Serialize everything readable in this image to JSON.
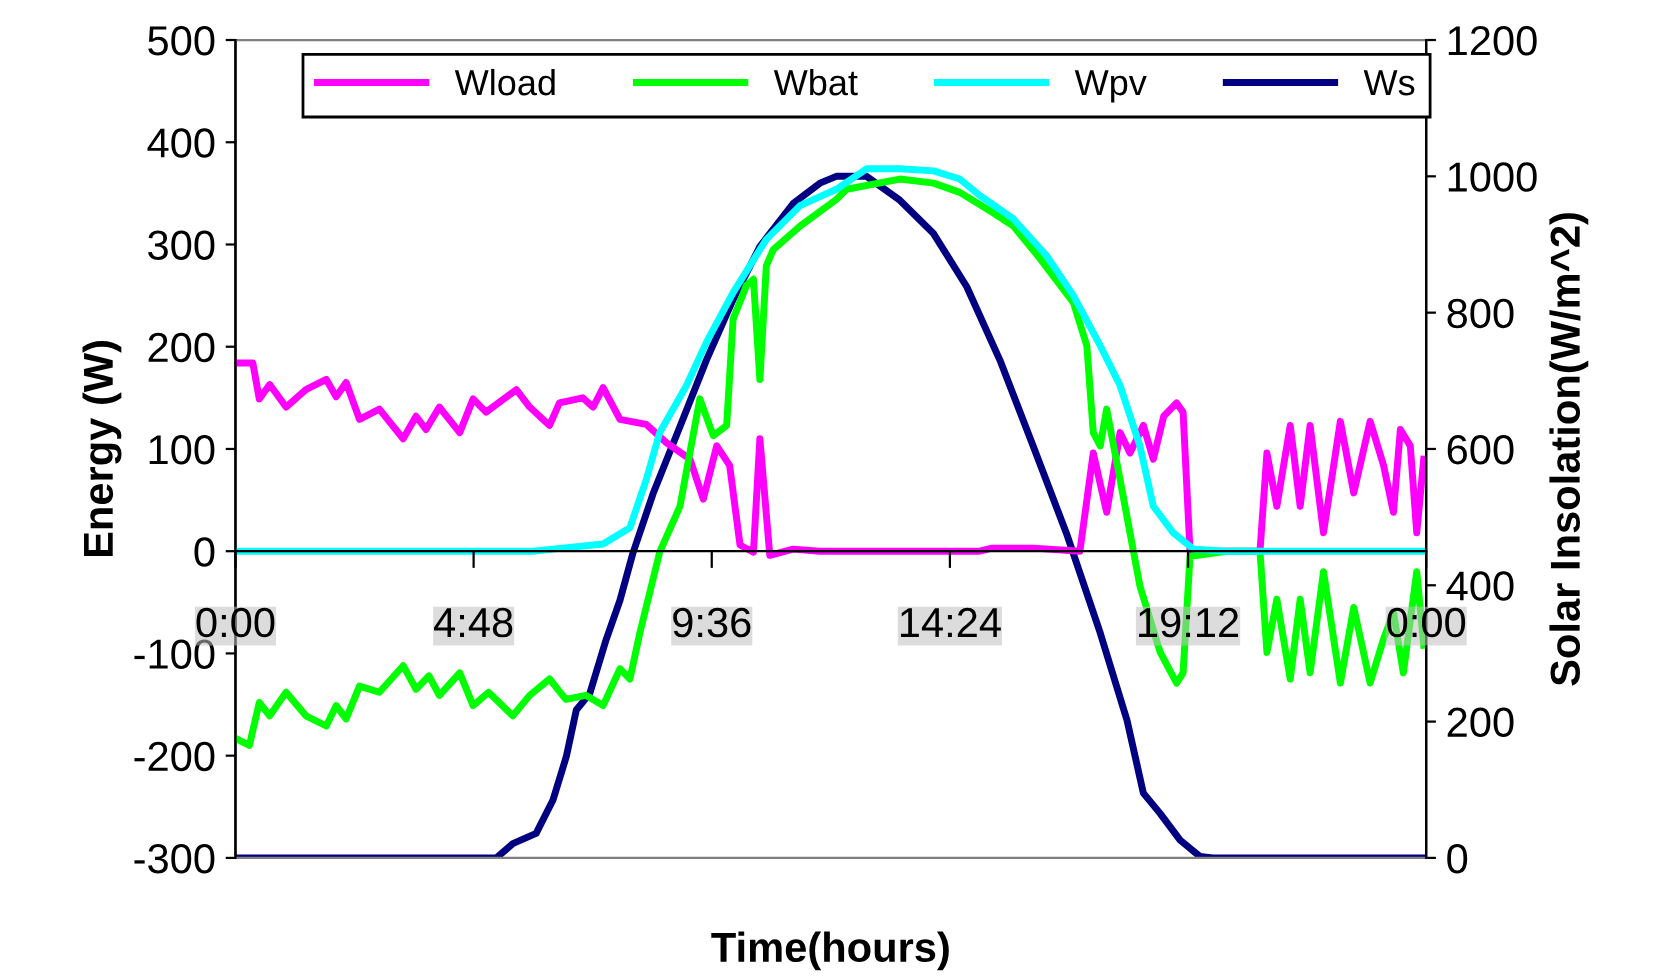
{
  "chart_data": {
    "type": "line",
    "xlabel": "Time(hours)",
    "ylabel": "Energy (W)",
    "y2label": "Solar Insolation(W/m^2)",
    "xlim": [
      0,
      24
    ],
    "xticks": [
      {
        "value": 0,
        "label": "0:00"
      },
      {
        "value": 4.8,
        "label": "4:48"
      },
      {
        "value": 9.6,
        "label": "9:36"
      },
      {
        "value": 14.4,
        "label": "14:24"
      },
      {
        "value": 19.2,
        "label": "19:12"
      },
      {
        "value": 24,
        "label": "0:00"
      }
    ],
    "ylim": [
      -300,
      500
    ],
    "yticks": [
      -300,
      -200,
      -100,
      0,
      100,
      200,
      300,
      400,
      500
    ],
    "y2lim": [
      0,
      1200
    ],
    "y2ticks": [
      0,
      200,
      400,
      600,
      800,
      1000,
      1200
    ],
    "grid": false,
    "legend": "top",
    "marker": "none",
    "line_style": "solid",
    "series": [
      {
        "name": "Wload",
        "color": "#ff00ff",
        "x": [
          0,
          0.35,
          0.48,
          0.69,
          1.02,
          1.42,
          1.83,
          2.03,
          2.23,
          2.5,
          2.9,
          3.38,
          3.64,
          3.84,
          4.11,
          4.52,
          4.79,
          5.05,
          5.66,
          5.93,
          6.33,
          6.53,
          7.0,
          7.21,
          7.41,
          7.75,
          8.28,
          8.69,
          9.16,
          9.43,
          9.7,
          9.96,
          10.17,
          10.44,
          10.57,
          10.77,
          11.24,
          11.78,
          15.0,
          15.25,
          16.08,
          17.02,
          17.29,
          17.56,
          17.83,
          18.03,
          18.3,
          18.5,
          18.71,
          18.97,
          19.1,
          19.24,
          19.98,
          20.65,
          20.79,
          20.99,
          21.26,
          21.46,
          21.66,
          21.93,
          22.27,
          22.54,
          22.87,
          23.14,
          23.34,
          23.48,
          23.68,
          23.81,
          23.95
        ],
        "values": [
          184,
          184,
          149,
          163,
          141,
          158,
          168,
          151,
          165,
          129,
          139,
          110,
          132,
          119,
          141,
          116,
          149,
          136,
          158,
          141,
          123,
          145,
          150,
          141,
          160,
          129,
          124,
          106,
          90,
          51,
          103,
          84,
          6,
          -1,
          110,
          -4,
          2,
          0,
          0,
          3,
          3,
          0,
          96,
          38,
          116,
          96,
          123,
          90,
          132,
          145,
          136,
          0,
          0,
          0,
          96,
          44,
          123,
          44,
          123,
          18,
          127,
          57,
          127,
          84,
          38,
          119,
          103,
          18,
          90
        ]
      },
      {
        "name": "Wbat",
        "color": "#00ff00",
        "x": [
          0,
          0.28,
          0.48,
          0.69,
          1.02,
          1.42,
          1.83,
          2.03,
          2.23,
          2.5,
          2.9,
          3.38,
          3.64,
          3.9,
          4.11,
          4.52,
          4.79,
          5.1,
          5.59,
          5.93,
          6.33,
          6.66,
          7.06,
          7.41,
          7.75,
          7.95,
          8.15,
          8.55,
          8.96,
          9.36,
          9.63,
          9.9,
          10.03,
          10.3,
          10.44,
          10.57,
          10.7,
          10.84,
          11.38,
          12.11,
          12.32,
          13.39,
          14.07,
          14.6,
          15.27,
          15.68,
          16.22,
          16.89,
          17.16,
          17.29,
          17.43,
          17.56,
          17.83,
          18.03,
          18.23,
          18.64,
          18.97,
          19.1,
          19.24,
          19.98,
          20.65,
          20.79,
          20.99,
          21.26,
          21.46,
          21.66,
          21.93,
          22.27,
          22.54,
          22.87,
          23.14,
          23.34,
          23.54,
          23.81,
          23.95
        ],
        "values": [
          -183,
          -190,
          -148,
          -161,
          -138,
          -161,
          -171,
          -151,
          -164,
          -132,
          -138,
          -112,
          -135,
          -122,
          -141,
          -119,
          -151,
          -138,
          -161,
          -141,
          -125,
          -145,
          -141,
          -151,
          -115,
          -125,
          -80,
          -1,
          44,
          149,
          113,
          123,
          227,
          260,
          266,
          168,
          279,
          295,
          318,
          344,
          354,
          364,
          360,
          351,
          331,
          318,
          286,
          243,
          201,
          116,
          103,
          139,
          70,
          18,
          -34,
          -99,
          -129,
          -119,
          -5,
          0,
          0,
          -99,
          -47,
          -125,
          -47,
          -119,
          -20,
          -129,
          -55,
          -129,
          -86,
          -60,
          -119,
          -20,
          -92
        ]
      },
      {
        "name": "Wpv",
        "color": "#00ffff",
        "x": [
          0,
          6.0,
          6.4,
          7.41,
          7.95,
          8.28,
          8.55,
          9.09,
          9.49,
          10.03,
          10.7,
          11.38,
          12.11,
          12.72,
          13.39,
          14.07,
          14.6,
          15.0,
          15.68,
          16.35,
          16.89,
          17.43,
          17.83,
          18.23,
          18.5,
          18.9,
          19.31,
          19.98,
          24
        ],
        "values": [
          0,
          0,
          2,
          7,
          23,
          70,
          116,
          162,
          204,
          253,
          305,
          338,
          354,
          374,
          374,
          372,
          364,
          348,
          325,
          289,
          250,
          201,
          162,
          103,
          44,
          18,
          2,
          0,
          0
        ]
      },
      {
        "name": "Ws",
        "color": "#000080",
        "axis": "y2",
        "x": [
          0,
          5.26,
          5.59,
          6.06,
          6.4,
          6.67,
          6.87,
          7.14,
          7.47,
          7.75,
          8.01,
          8.42,
          8.96,
          9.49,
          10.03,
          10.57,
          11.24,
          11.78,
          12.11,
          12.72,
          13.39,
          14.07,
          14.74,
          15.41,
          16.08,
          16.75,
          17.43,
          17.97,
          18.3,
          18.64,
          19.04,
          19.44,
          19.7,
          24
        ],
        "values": [
          0,
          0,
          21,
          36,
          85,
          149,
          217,
          241,
          320,
          378,
          447,
          535,
          633,
          730,
          819,
          897,
          960,
          990,
          1000,
          1000,
          965,
          916,
          838,
          730,
          604,
          476,
          330,
          202,
          95,
          65,
          26,
          2,
          0,
          0
        ]
      }
    ]
  }
}
